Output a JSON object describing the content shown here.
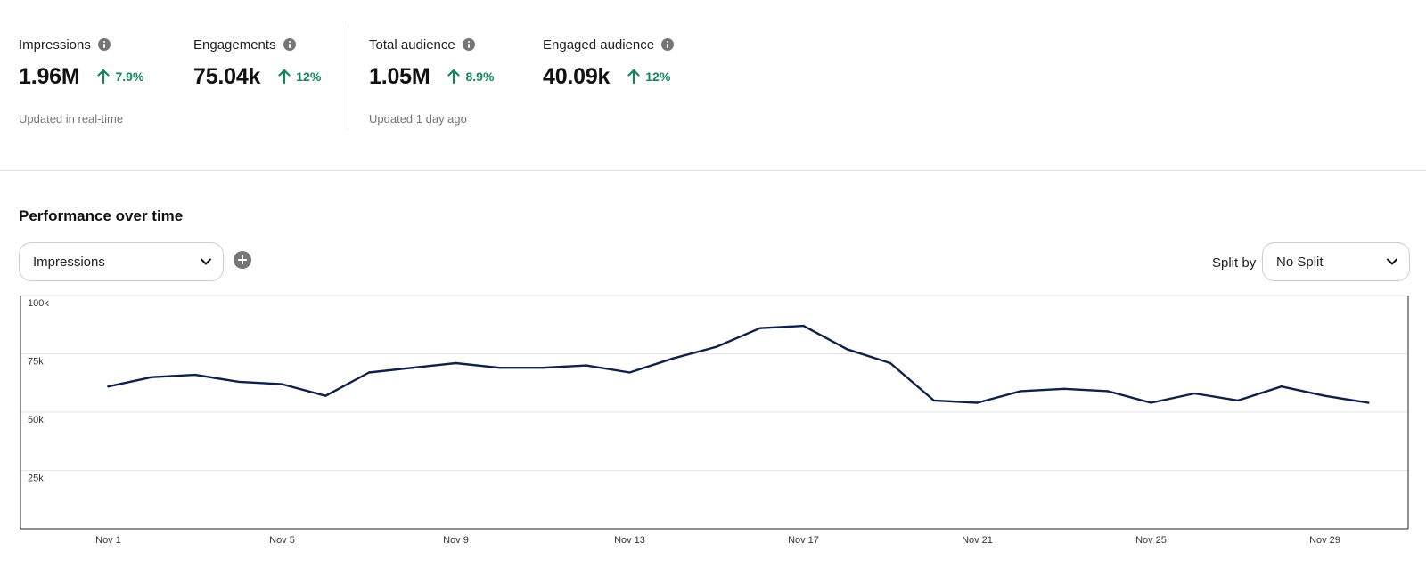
{
  "metrics": [
    {
      "label": "Impressions",
      "value": "1.96M",
      "change": "7.9%"
    },
    {
      "label": "Engagements",
      "value": "75.04k",
      "change": "12%"
    },
    {
      "label": "Total audience",
      "value": "1.05M",
      "change": "8.9%"
    },
    {
      "label": "Engaged audience",
      "value": "40.09k",
      "change": "12%"
    }
  ],
  "footnotes": {
    "realtime": "Updated in real-time",
    "daily": "Updated 1 day ago"
  },
  "section": {
    "title": "Performance over time",
    "metric_select": "Impressions",
    "split_label": "Split by",
    "split_select": "No Split"
  },
  "colors": {
    "positive": "#16845b",
    "line": "#0f2147",
    "grid": "#e6e6e6"
  },
  "chart_data": {
    "type": "line",
    "ylim": [
      0,
      100000
    ],
    "y_ticks": [
      {
        "value": 100000,
        "label": "100k"
      },
      {
        "value": 75000,
        "label": "75k"
      },
      {
        "value": 50000,
        "label": "50k"
      },
      {
        "value": 25000,
        "label": "25k"
      }
    ],
    "x_tick_labels": [
      "Nov 1",
      "Nov 5",
      "Nov 9",
      "Nov 13",
      "Nov 17",
      "Nov 21",
      "Nov 25",
      "Nov 29"
    ],
    "x_tick_days": [
      1,
      5,
      9,
      13,
      17,
      21,
      25,
      29
    ],
    "series": [
      {
        "x": [
          1,
          2,
          3,
          4,
          5,
          6,
          7,
          8,
          9,
          10,
          11,
          12,
          13,
          14,
          15,
          16,
          17,
          18,
          19,
          20,
          21,
          22,
          23,
          24,
          25,
          26,
          27,
          28,
          29,
          30
        ],
        "values": [
          61000,
          65000,
          66000,
          63000,
          62000,
          57000,
          67000,
          69000,
          71000,
          69000,
          69000,
          70000,
          67000,
          73000,
          78000,
          86000,
          87000,
          77000,
          71000,
          55000,
          54000,
          59000,
          60000,
          59000,
          54000,
          58000,
          55000,
          61000,
          57000,
          54000
        ]
      }
    ]
  }
}
